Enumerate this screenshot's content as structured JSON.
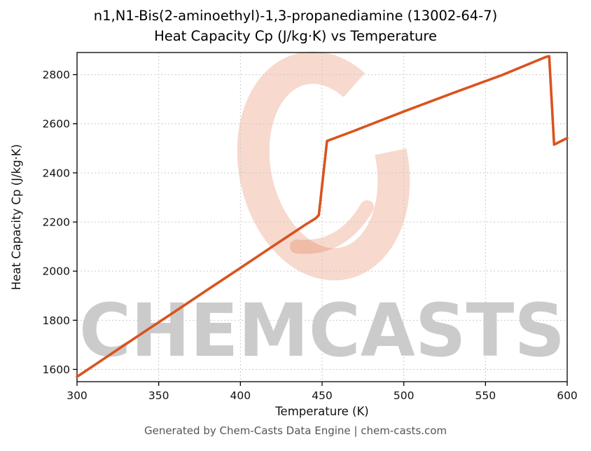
{
  "chart_data": {
    "type": "line",
    "title": "n1,N1-Bis(2-aminoethyl)-1,3-propanediamine (13002-64-7)",
    "subtitle": "Heat Capacity Cp (J/kg·K) vs Temperature",
    "xlabel": "Temperature (K)",
    "ylabel": "Heat Capacity Cp (J/kg·K)",
    "xlim": [
      300,
      600
    ],
    "ylim": [
      1550,
      2890
    ],
    "x_ticks": [
      300,
      350,
      400,
      450,
      500,
      550,
      600
    ],
    "y_ticks": [
      1600,
      1800,
      2000,
      2200,
      2400,
      2600,
      2800
    ],
    "grid": true,
    "legend": "none",
    "line_color": "#d9531f",
    "series": [
      {
        "name": "Heat Capacity Cp",
        "x": [
          300,
          320,
          340,
          360,
          380,
          400,
          420,
          440,
          446,
          448,
          453,
          470,
          500,
          530,
          560,
          587,
          589,
          592,
          600
        ],
        "y": [
          1570,
          1659,
          1748,
          1836,
          1925,
          2013,
          2102,
          2190,
          2215,
          2228,
          2530,
          2572,
          2650,
          2725,
          2798,
          2872,
          2875,
          2515,
          2542
        ]
      }
    ]
  },
  "watermark": {
    "text": "CHEMCASTS",
    "logo": "c-ring-logo",
    "color": "#d9531f",
    "opacity": 0.22
  },
  "footer": {
    "text": "Generated by Chem-Casts Data Engine | chem-casts.com"
  }
}
